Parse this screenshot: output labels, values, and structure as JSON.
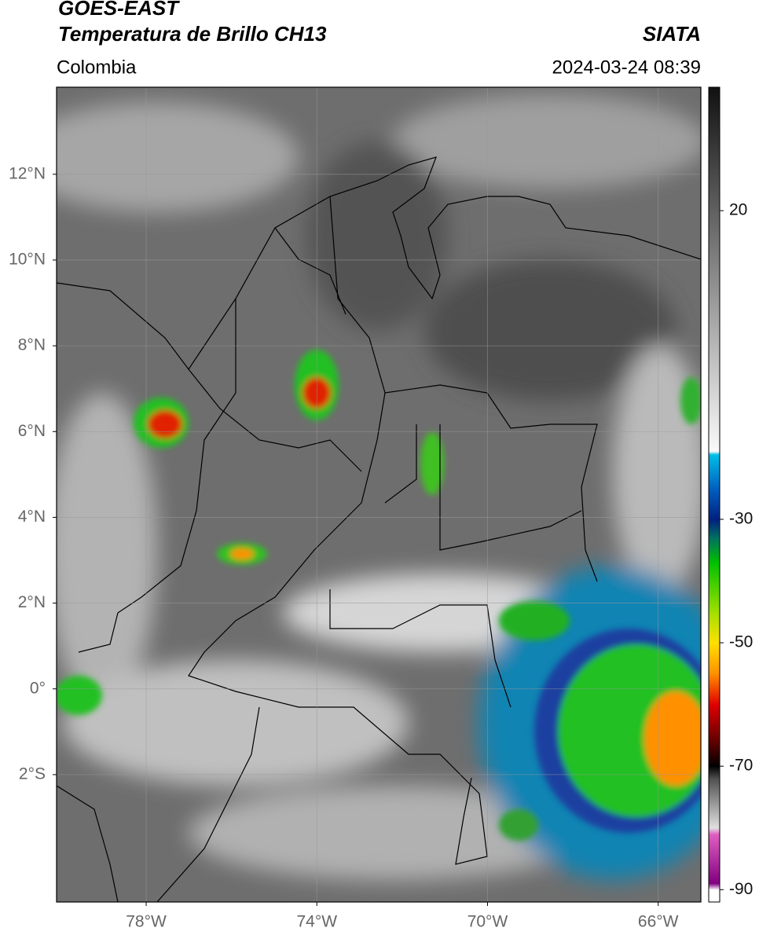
{
  "map": {
    "title": "GOES-EAST",
    "subtitle": "Temperatura de Brillo CH13",
    "source": "SIATA",
    "region": "Colombia",
    "datetime": "2024-03-24 08:39",
    "xlim": [
      -80.1,
      -65.0
    ],
    "ylim": [
      -4.97,
      14.03
    ],
    "grid": true,
    "yticks": [
      {
        "value": 12,
        "label": "12°N"
      },
      {
        "value": 10,
        "label": "10°N"
      },
      {
        "value": 8,
        "label": "8°N"
      },
      {
        "value": 6,
        "label": "6°N"
      },
      {
        "value": 4,
        "label": "4°N"
      },
      {
        "value": 2,
        "label": "2°N"
      },
      {
        "value": 0,
        "label": "0°"
      },
      {
        "value": -2,
        "label": "2°S"
      }
    ],
    "xticks": [
      {
        "value": -78,
        "label": "78°W"
      },
      {
        "value": -74,
        "label": "74°W"
      },
      {
        "value": -70,
        "label": "70°W"
      },
      {
        "value": -66,
        "label": "66°W"
      }
    ],
    "colorbar": {
      "lim": [
        -92,
        40
      ],
      "ticks": [
        20,
        -30,
        -50,
        -70,
        -90
      ],
      "stops": [
        {
          "value": 40,
          "color": "#111111"
        },
        {
          "value": -19,
          "color": "#fafafa"
        },
        {
          "value": -19.5,
          "color": "#00bfe6"
        },
        {
          "value": -25,
          "color": "#0060c0"
        },
        {
          "value": -30,
          "color": "#002080"
        },
        {
          "value": -33,
          "color": "#007060"
        },
        {
          "value": -37,
          "color": "#00c000"
        },
        {
          "value": -45,
          "color": "#a0e000"
        },
        {
          "value": -50,
          "color": "#ffe000"
        },
        {
          "value": -55,
          "color": "#ff9000"
        },
        {
          "value": -60,
          "color": "#e00000"
        },
        {
          "value": -66,
          "color": "#600000"
        },
        {
          "value": -70,
          "color": "#000000"
        },
        {
          "value": -72,
          "color": "#505050"
        },
        {
          "value": -80,
          "color": "#e0e0e0"
        },
        {
          "value": -81,
          "color": "#e060c0"
        },
        {
          "value": -89,
          "color": "#800080"
        },
        {
          "value": -90,
          "color": "#ffffff"
        },
        {
          "value": -92,
          "color": "#ffffff"
        }
      ]
    }
  }
}
